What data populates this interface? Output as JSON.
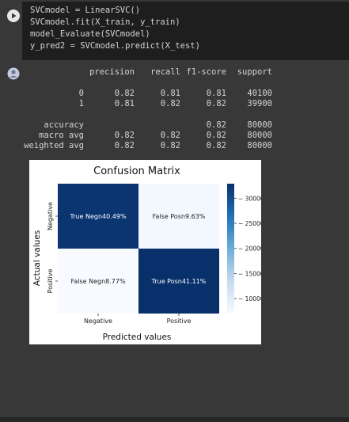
{
  "code": {
    "lines": [
      "SVCmodel = LinearSVC()",
      "SVCmodel.fit(X_train, y_train)",
      "model_Evaluate(SVCmodel)",
      "y_pred2 = SVCmodel.predict(X_test)"
    ]
  },
  "report": {
    "headers": [
      "precision",
      "recall",
      "f1-score",
      "support"
    ],
    "rows": [
      {
        "label": "0",
        "precision": "0.82",
        "recall": "0.81",
        "f1": "0.81",
        "support": "40100"
      },
      {
        "label": "1",
        "precision": "0.81",
        "recall": "0.82",
        "f1": "0.82",
        "support": "39900"
      },
      {
        "label": "accuracy",
        "precision": "",
        "recall": "",
        "f1": "0.82",
        "support": "80000"
      },
      {
        "label": "macro avg",
        "precision": "0.82",
        "recall": "0.82",
        "f1": "0.82",
        "support": "80000"
      },
      {
        "label": "weighted avg",
        "precision": "0.82",
        "recall": "0.82",
        "f1": "0.82",
        "support": "80000"
      }
    ]
  },
  "chart_data": {
    "type": "heatmap",
    "title": "Confusion Matrix",
    "xlabel": "Predicted values",
    "ylabel": "Actual values",
    "x_categories": [
      "Negative",
      "Positive"
    ],
    "y_categories": [
      "Negative",
      "Positive"
    ],
    "cells": [
      {
        "row": 0,
        "col": 0,
        "label": "True Negn40.49%",
        "value": 32393
      },
      {
        "row": 0,
        "col": 1,
        "label": "False Posn9.63%",
        "value": 7707
      },
      {
        "row": 1,
        "col": 0,
        "label": "False Negn8.77%",
        "value": 7016
      },
      {
        "row": 1,
        "col": 1,
        "label": "True Posn41.11%",
        "value": 32884
      }
    ],
    "colorbar": {
      "min": 7016,
      "max": 32884,
      "ticks": [
        10000,
        15000,
        20000,
        25000,
        30000
      ],
      "colormap": "Blues"
    }
  }
}
